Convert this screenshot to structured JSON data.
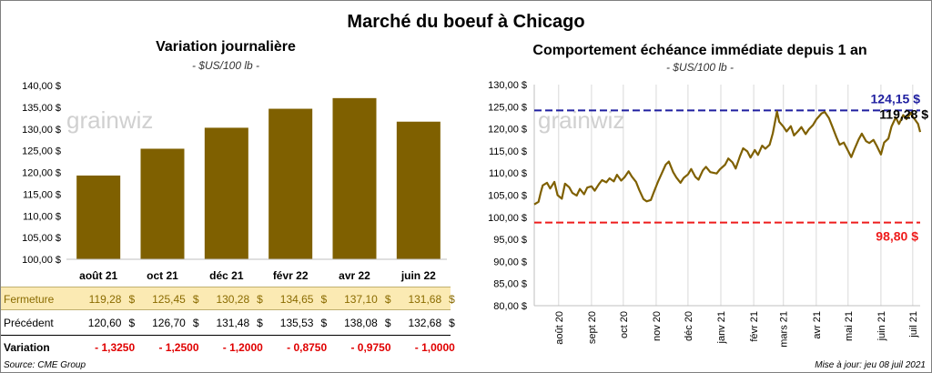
{
  "title": "Marché du boeuf à Chicago",
  "left": {
    "subtitle": "Variation  journalière",
    "unit": "- $US/100 lb -",
    "watermark": "grainwiz"
  },
  "right": {
    "subtitle": "Comportement  échéance immédiate depuis 1 an",
    "unit": "- $US/100 lb -",
    "watermark": "grainwiz"
  },
  "table": {
    "rows": [
      {
        "label": "Fermeture",
        "values": [
          "119,28",
          "125,45",
          "130,28",
          "134,65",
          "137,10",
          "131,68"
        ],
        "currency": "$"
      },
      {
        "label": "Précédent",
        "values": [
          "120,60",
          "126,70",
          "131,48",
          "135,53",
          "138,08",
          "132,68"
        ],
        "currency": "$"
      },
      {
        "label": "Variation",
        "values": [
          "- 1,3250",
          "- 1,2500",
          "- 1,2000",
          "- 0,8750",
          "- 0,9750",
          "- 1,0000"
        ]
      }
    ]
  },
  "footer": {
    "source": "Source: CME Group",
    "updated": "Mise à jour: jeu 08 juil 2021"
  },
  "chart_data": [
    {
      "type": "bar",
      "title": "Variation  journalière",
      "subtitle": "- $US/100 lb -",
      "categories": [
        "août 21",
        "oct 21",
        "déc 21",
        "févr 22",
        "avr 22",
        "juin 22"
      ],
      "values": [
        119.28,
        125.45,
        130.28,
        134.65,
        137.1,
        131.68
      ],
      "ylim": [
        100,
        140
      ],
      "yticks": [
        "100,00 $",
        "105,00 $",
        "110,00 $",
        "115,00 $",
        "120,00 $",
        "125,00 $",
        "130,00 $",
        "135,00 $",
        "140,00 $"
      ],
      "bar_color": "#7f6000",
      "grid": false
    },
    {
      "type": "line",
      "title": "Comportement  échéance immédiate depuis 1 an",
      "subtitle": "- $US/100 lb -",
      "ylim": [
        80,
        130
      ],
      "yticks": [
        "80,00 $",
        "85,00 $",
        "90,00 $",
        "95,00 $",
        "100,00 $",
        "105,00 $",
        "110,00 $",
        "115,00 $",
        "120,00 $",
        "125,00 $",
        "130,00 $"
      ],
      "xticks": [
        "août 20",
        "sept 20",
        "oct 20",
        "nov 20",
        "déc 20",
        "janv 21",
        "févr 21",
        "mars 21",
        "avr 21",
        "mai 21",
        "juin 21",
        "juil 21"
      ],
      "x_start": "2020-07-09",
      "x_end": "2021-07-08",
      "line_color": "#7f6000",
      "high": {
        "value": 124.15,
        "label": "124,15 $",
        "color": "#1f1fa0"
      },
      "low": {
        "value": 98.8,
        "label": "98,80 $",
        "color": "#ee1c1c"
      },
      "last": {
        "value": 119.28,
        "label": "119,28 $"
      },
      "series": [
        {
          "values": [
            [
              "2020-07-09",
              102.9
            ],
            [
              "2020-07-13",
              103.5
            ],
            [
              "2020-07-15",
              105.5
            ],
            [
              "2020-07-17",
              107.2
            ],
            [
              "2020-07-21",
              107.8
            ],
            [
              "2020-07-24",
              106.5
            ],
            [
              "2020-07-28",
              108.0
            ],
            [
              "2020-07-31",
              105.0
            ],
            [
              "2020-08-04",
              104.2
            ],
            [
              "2020-08-07",
              107.6
            ],
            [
              "2020-08-11",
              106.8
            ],
            [
              "2020-08-14",
              105.5
            ],
            [
              "2020-08-18",
              104.9
            ],
            [
              "2020-08-21",
              106.4
            ],
            [
              "2020-08-25",
              105.2
            ],
            [
              "2020-08-28",
              106.7
            ],
            [
              "2020-09-01",
              107.0
            ],
            [
              "2020-09-04",
              106.0
            ],
            [
              "2020-09-08",
              107.5
            ],
            [
              "2020-09-11",
              108.4
            ],
            [
              "2020-09-15",
              107.9
            ],
            [
              "2020-09-18",
              108.8
            ],
            [
              "2020-09-22",
              108.1
            ],
            [
              "2020-09-25",
              109.6
            ],
            [
              "2020-09-29",
              108.3
            ],
            [
              "2020-10-02",
              109.0
            ],
            [
              "2020-10-06",
              110.4
            ],
            [
              "2020-10-09",
              109.2
            ],
            [
              "2020-10-13",
              108.0
            ],
            [
              "2020-10-16",
              106.2
            ],
            [
              "2020-10-20",
              104.1
            ],
            [
              "2020-10-23",
              103.6
            ],
            [
              "2020-10-27",
              103.9
            ],
            [
              "2020-10-30",
              105.8
            ],
            [
              "2020-11-03",
              108.2
            ],
            [
              "2020-11-06",
              109.8
            ],
            [
              "2020-11-10",
              111.9
            ],
            [
              "2020-11-13",
              112.6
            ],
            [
              "2020-11-17",
              110.2
            ],
            [
              "2020-11-20",
              109.0
            ],
            [
              "2020-11-24",
              107.8
            ],
            [
              "2020-11-27",
              108.9
            ],
            [
              "2020-12-01",
              109.7
            ],
            [
              "2020-12-04",
              110.9
            ],
            [
              "2020-12-08",
              109.1
            ],
            [
              "2020-12-11",
              108.5
            ],
            [
              "2020-12-15",
              110.6
            ],
            [
              "2020-12-18",
              111.4
            ],
            [
              "2020-12-22",
              110.2
            ],
            [
              "2020-12-28",
              109.9
            ],
            [
              "2020-12-31",
              110.8
            ],
            [
              "2021-01-05",
              111.9
            ],
            [
              "2021-01-08",
              113.3
            ],
            [
              "2021-01-12",
              112.4
            ],
            [
              "2021-01-15",
              111.0
            ],
            [
              "2021-01-19",
              113.8
            ],
            [
              "2021-01-22",
              115.6
            ],
            [
              "2021-01-26",
              114.9
            ],
            [
              "2021-01-29",
              113.5
            ],
            [
              "2021-02-02",
              115.2
            ],
            [
              "2021-02-05",
              114.1
            ],
            [
              "2021-02-09",
              116.2
            ],
            [
              "2021-02-12",
              115.5
            ],
            [
              "2021-02-16",
              116.4
            ],
            [
              "2021-02-19",
              119.0
            ],
            [
              "2021-02-23",
              123.9
            ],
            [
              "2021-02-25",
              121.6
            ],
            [
              "2021-03-01",
              120.5
            ],
            [
              "2021-03-04",
              119.4
            ],
            [
              "2021-03-08",
              120.6
            ],
            [
              "2021-03-11",
              118.5
            ],
            [
              "2021-03-15",
              119.5
            ],
            [
              "2021-03-18",
              120.4
            ],
            [
              "2021-03-22",
              118.8
            ],
            [
              "2021-03-25",
              119.9
            ],
            [
              "2021-03-29",
              120.9
            ],
            [
              "2021-04-01",
              122.1
            ],
            [
              "2021-04-06",
              123.5
            ],
            [
              "2021-04-09",
              123.8
            ],
            [
              "2021-04-13",
              122.4
            ],
            [
              "2021-04-16",
              120.6
            ],
            [
              "2021-04-20",
              118.1
            ],
            [
              "2021-04-23",
              116.4
            ],
            [
              "2021-04-27",
              116.9
            ],
            [
              "2021-04-30",
              115.5
            ],
            [
              "2021-05-04",
              113.6
            ],
            [
              "2021-05-07",
              115.4
            ],
            [
              "2021-05-11",
              117.6
            ],
            [
              "2021-05-14",
              118.9
            ],
            [
              "2021-05-18",
              117.2
            ],
            [
              "2021-05-21",
              116.8
            ],
            [
              "2021-05-25",
              117.5
            ],
            [
              "2021-05-28",
              116.2
            ],
            [
              "2021-06-01",
              114.2
            ],
            [
              "2021-06-04",
              116.9
            ],
            [
              "2021-06-08",
              117.8
            ],
            [
              "2021-06-11",
              120.5
            ],
            [
              "2021-06-15",
              122.6
            ],
            [
              "2021-06-18",
              121.1
            ],
            [
              "2021-06-22",
              123.1
            ],
            [
              "2021-06-25",
              122.2
            ],
            [
              "2021-06-29",
              123.6
            ],
            [
              "2021-07-01",
              122.8
            ],
            [
              "2021-07-06",
              121.1
            ],
            [
              "2021-07-08",
              119.28
            ]
          ]
        }
      ]
    }
  ]
}
